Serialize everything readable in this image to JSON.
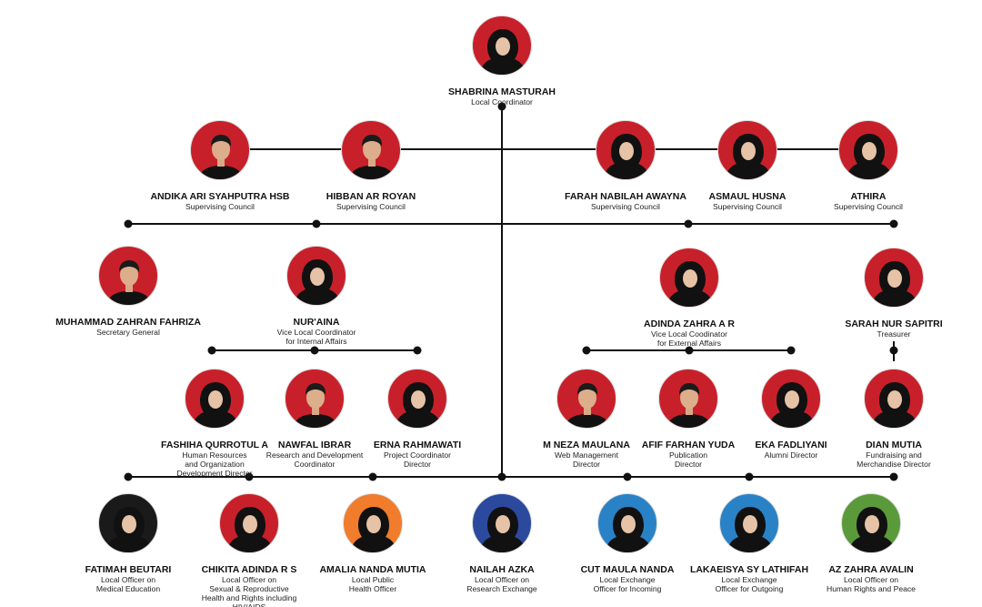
{
  "people": [
    {
      "name": "SHABRINA MASTURAH",
      "role": [
        "Local Coordinator"
      ],
      "bg": "#c8202a",
      "hijab": true
    },
    {
      "name": "ANDIKA ARI SYAHPUTRA HSB",
      "role": [
        "Supervising Council"
      ],
      "bg": "#c8202a",
      "hijab": false
    },
    {
      "name": "HIBBAN AR ROYAN",
      "role": [
        "Supervising Council"
      ],
      "bg": "#c8202a",
      "hijab": false
    },
    {
      "name": "FARAH NABILAH AWAYNA",
      "role": [
        "Supervising Council"
      ],
      "bg": "#c8202a",
      "hijab": true
    },
    {
      "name": "ASMAUL HUSNA",
      "role": [
        "Supervising Council"
      ],
      "bg": "#c8202a",
      "hijab": true
    },
    {
      "name": "ATHIRA",
      "role": [
        "Supervising Council"
      ],
      "bg": "#c8202a",
      "hijab": true
    },
    {
      "name": "MUHAMMAD ZAHRAN FAHRIZA",
      "role": [
        "Secretary General"
      ],
      "bg": "#c8202a",
      "hijab": false
    },
    {
      "name": "NUR'AINA",
      "role": [
        "Vice Local Coordinator",
        "for Internal Affairs"
      ],
      "bg": "#c8202a",
      "hijab": true
    },
    {
      "name": "ADINDA ZAHRA A R",
      "role": [
        "Vice Local Coodinator",
        "for External Affairs"
      ],
      "bg": "#c8202a",
      "hijab": true
    },
    {
      "name": "SARAH NUR SAPITRI",
      "role": [
        "Treasurer"
      ],
      "bg": "#c8202a",
      "hijab": true
    },
    {
      "name": "FASHIHA QURROTUL A",
      "role": [
        "Human Resources",
        "and Organization",
        "Development Director"
      ],
      "bg": "#c8202a",
      "hijab": true
    },
    {
      "name": "NAWFAL IBRAR",
      "role": [
        "Research and Development",
        "Coordinator"
      ],
      "bg": "#c8202a",
      "hijab": false
    },
    {
      "name": "ERNA RAHMAWATI",
      "role": [
        "Project Coordinator",
        "Director"
      ],
      "bg": "#c8202a",
      "hijab": true
    },
    {
      "name": "M NEZA MAULANA",
      "role": [
        "Web Management",
        "Director"
      ],
      "bg": "#c8202a",
      "hijab": false
    },
    {
      "name": "AFIF FARHAN YUDA",
      "role": [
        "Publication",
        "Director"
      ],
      "bg": "#c8202a",
      "hijab": false
    },
    {
      "name": "EKA FADLIYANI",
      "role": [
        "Alumni Director"
      ],
      "bg": "#c8202a",
      "hijab": true
    },
    {
      "name": "DIAN MUTIA",
      "role": [
        "Fundraising and",
        "Merchandise Director"
      ],
      "bg": "#c8202a",
      "hijab": true
    },
    {
      "name": "FATIMAH BEUTARI",
      "role": [
        "Local Officer on",
        "Medical Education"
      ],
      "bg": "#1a1a1a",
      "hijab": true
    },
    {
      "name": "CHIKITA ADINDA R S",
      "role": [
        "Local Officer on",
        "Sexual & Reproductive",
        "Health and Rights including",
        "HIV/AIDS"
      ],
      "bg": "#c8202a",
      "hijab": true
    },
    {
      "name": "AMALIA NANDA MUTIA",
      "role": [
        "Local Public",
        "Health Officer"
      ],
      "bg": "#f07c2c",
      "hijab": true
    },
    {
      "name": "NAILAH AZKA",
      "role": [
        "Local Officer on",
        "Research Exchange"
      ],
      "bg": "#2b4a9e",
      "hijab": true
    },
    {
      "name": "CUT MAULA NANDA",
      "role": [
        "Local Exchange",
        "Officer for Incoming"
      ],
      "bg": "#2a82c6",
      "hijab": true
    },
    {
      "name": "LAKAEISYA SY LATHIFAH",
      "role": [
        "Local Exchange",
        "Officer for Outgoing"
      ],
      "bg": "#2a82c6",
      "hijab": true
    },
    {
      "name": "AZ ZAHRA AVALIN",
      "role": [
        "Local Officer on",
        "Human Rights and Peace"
      ],
      "bg": "#5a9a3a",
      "hijab": true
    }
  ]
}
